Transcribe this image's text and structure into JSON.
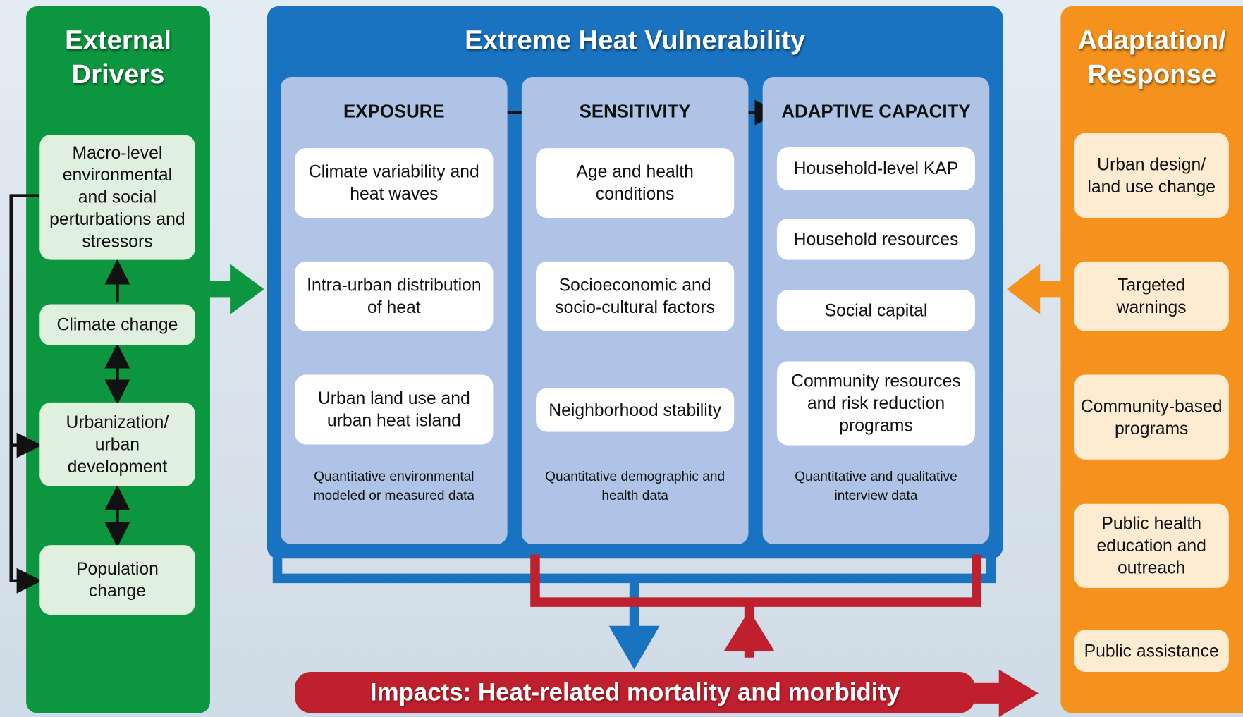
{
  "left": {
    "title": "External Drivers",
    "boxes": [
      "Macro-level environmental and social perturbations and stressors",
      "Climate change",
      "Urbanization/ urban development",
      "Population change"
    ]
  },
  "center": {
    "title": "Extreme Heat Vulnerability",
    "columns": [
      {
        "title": "EXPOSURE",
        "boxes": [
          "Climate variability and heat waves",
          "Intra-urban distribution of heat",
          "Urban land use and urban heat island"
        ],
        "note": "Quantitative environmental modeled or measured data"
      },
      {
        "title": "SENSITIVITY",
        "boxes": [
          "Age and health conditions",
          "Socioeconomic and socio-cultural factors",
          "Neighborhood stability"
        ],
        "note": "Quantitative demographic and health data"
      },
      {
        "title": "ADAPTIVE CAPACITY",
        "boxes": [
          "Household-level KAP",
          "Household resources",
          "Social capital",
          "Community resources and risk reduction programs"
        ],
        "note": "Quantitative and qualitative interview data"
      }
    ]
  },
  "right": {
    "title": "Adaptation/ Response",
    "boxes": [
      "Urban design/ land use change",
      "Targeted warnings",
      "Community-based programs",
      "Public health education and outreach",
      "Public assistance"
    ]
  },
  "impacts": {
    "title": "Impacts: Heat-related mortality and morbidity"
  }
}
